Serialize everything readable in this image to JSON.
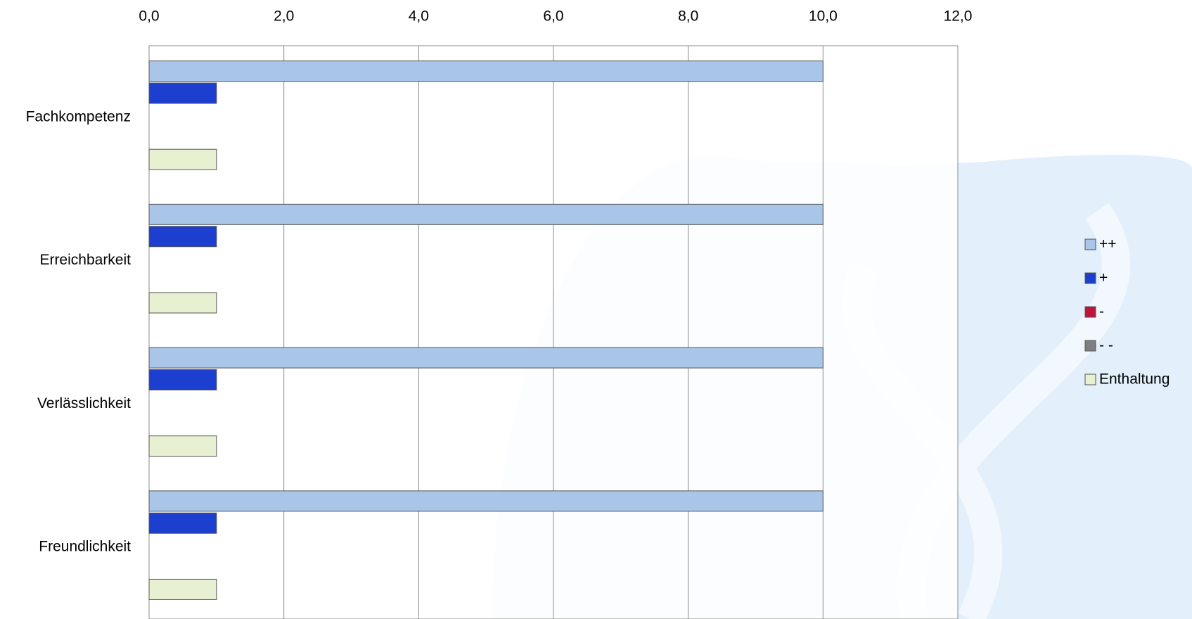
{
  "chart_data": {
    "type": "bar",
    "orientation": "horizontal",
    "categories": [
      "Fachkompetenz",
      "Erreichbarkeit",
      "Verlässlichkeit",
      "Freundlichkeit"
    ],
    "series": [
      {
        "name": "++",
        "color": "#a9c5e8",
        "values": [
          10,
          10,
          10,
          10
        ]
      },
      {
        "name": "+",
        "color": "#1d3fcf",
        "values": [
          1,
          1,
          1,
          1
        ]
      },
      {
        "name": "-",
        "color": "#c01438",
        "values": [
          0,
          0,
          0,
          0
        ]
      },
      {
        "name": "- -",
        "color": "#7f7f7f",
        "values": [
          0,
          0,
          0,
          0
        ]
      },
      {
        "name": "Enthaltung",
        "color": "#e8f0d2",
        "values": [
          1,
          1,
          1,
          1
        ]
      }
    ],
    "xlim": [
      0,
      12
    ],
    "xticks": [
      {
        "value": 0,
        "label": "0,0"
      },
      {
        "value": 2,
        "label": "2,0"
      },
      {
        "value": 4,
        "label": "4,0"
      },
      {
        "value": 6,
        "label": "6,0"
      },
      {
        "value": 8,
        "label": "8,0"
      },
      {
        "value": 10,
        "label": "10,0"
      },
      {
        "value": 12,
        "label": "12,0"
      }
    ],
    "grid": true,
    "legend": "right"
  }
}
